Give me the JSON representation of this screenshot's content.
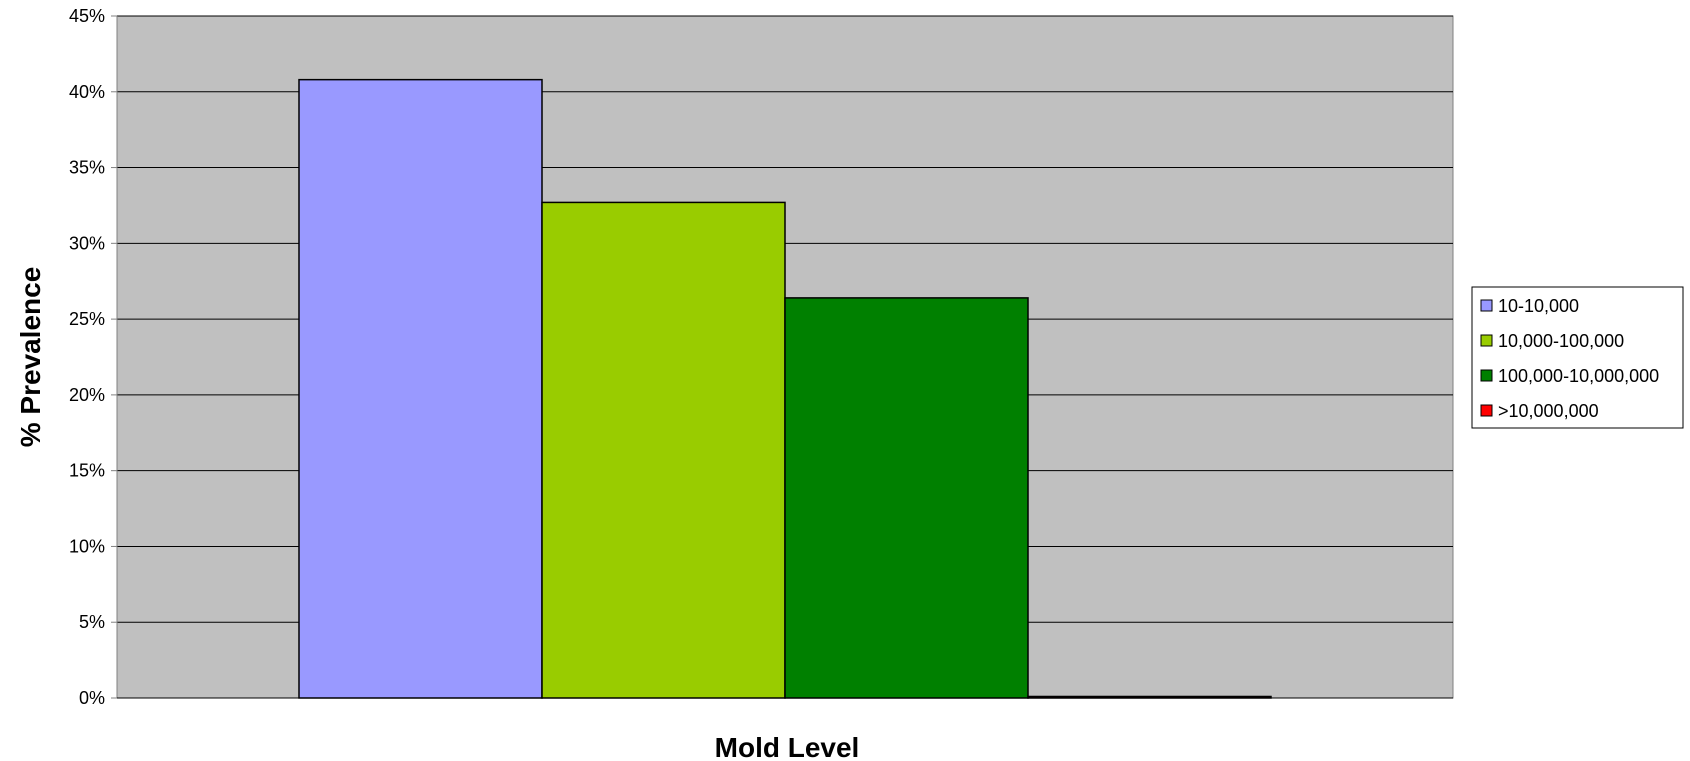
{
  "chart_data": {
    "type": "bar",
    "title": "",
    "xlabel": "Mold Level",
    "ylabel": "% Prevalence",
    "categories": [
      ""
    ],
    "ylim": [
      0,
      45
    ],
    "yticks": [
      0,
      5,
      10,
      15,
      20,
      25,
      30,
      35,
      40,
      45
    ],
    "ytick_labels": [
      "0%",
      "5%",
      "10%",
      "15%",
      "20%",
      "25%",
      "30%",
      "35%",
      "40%",
      "45%"
    ],
    "grid": true,
    "legend_position": "right",
    "plot_background": "#C0C0C0",
    "series": [
      {
        "name": "10-10,000",
        "values": [
          40.8
        ],
        "color": "#9999FF"
      },
      {
        "name": "10,000-100,000",
        "values": [
          32.7
        ],
        "color": "#99CC00"
      },
      {
        "name": "100,000-10,000,000",
        "values": [
          26.4
        ],
        "color": "#008000"
      },
      {
        "name": ">10,000,000",
        "values": [
          0.1
        ],
        "color": "#FF0000"
      }
    ]
  }
}
